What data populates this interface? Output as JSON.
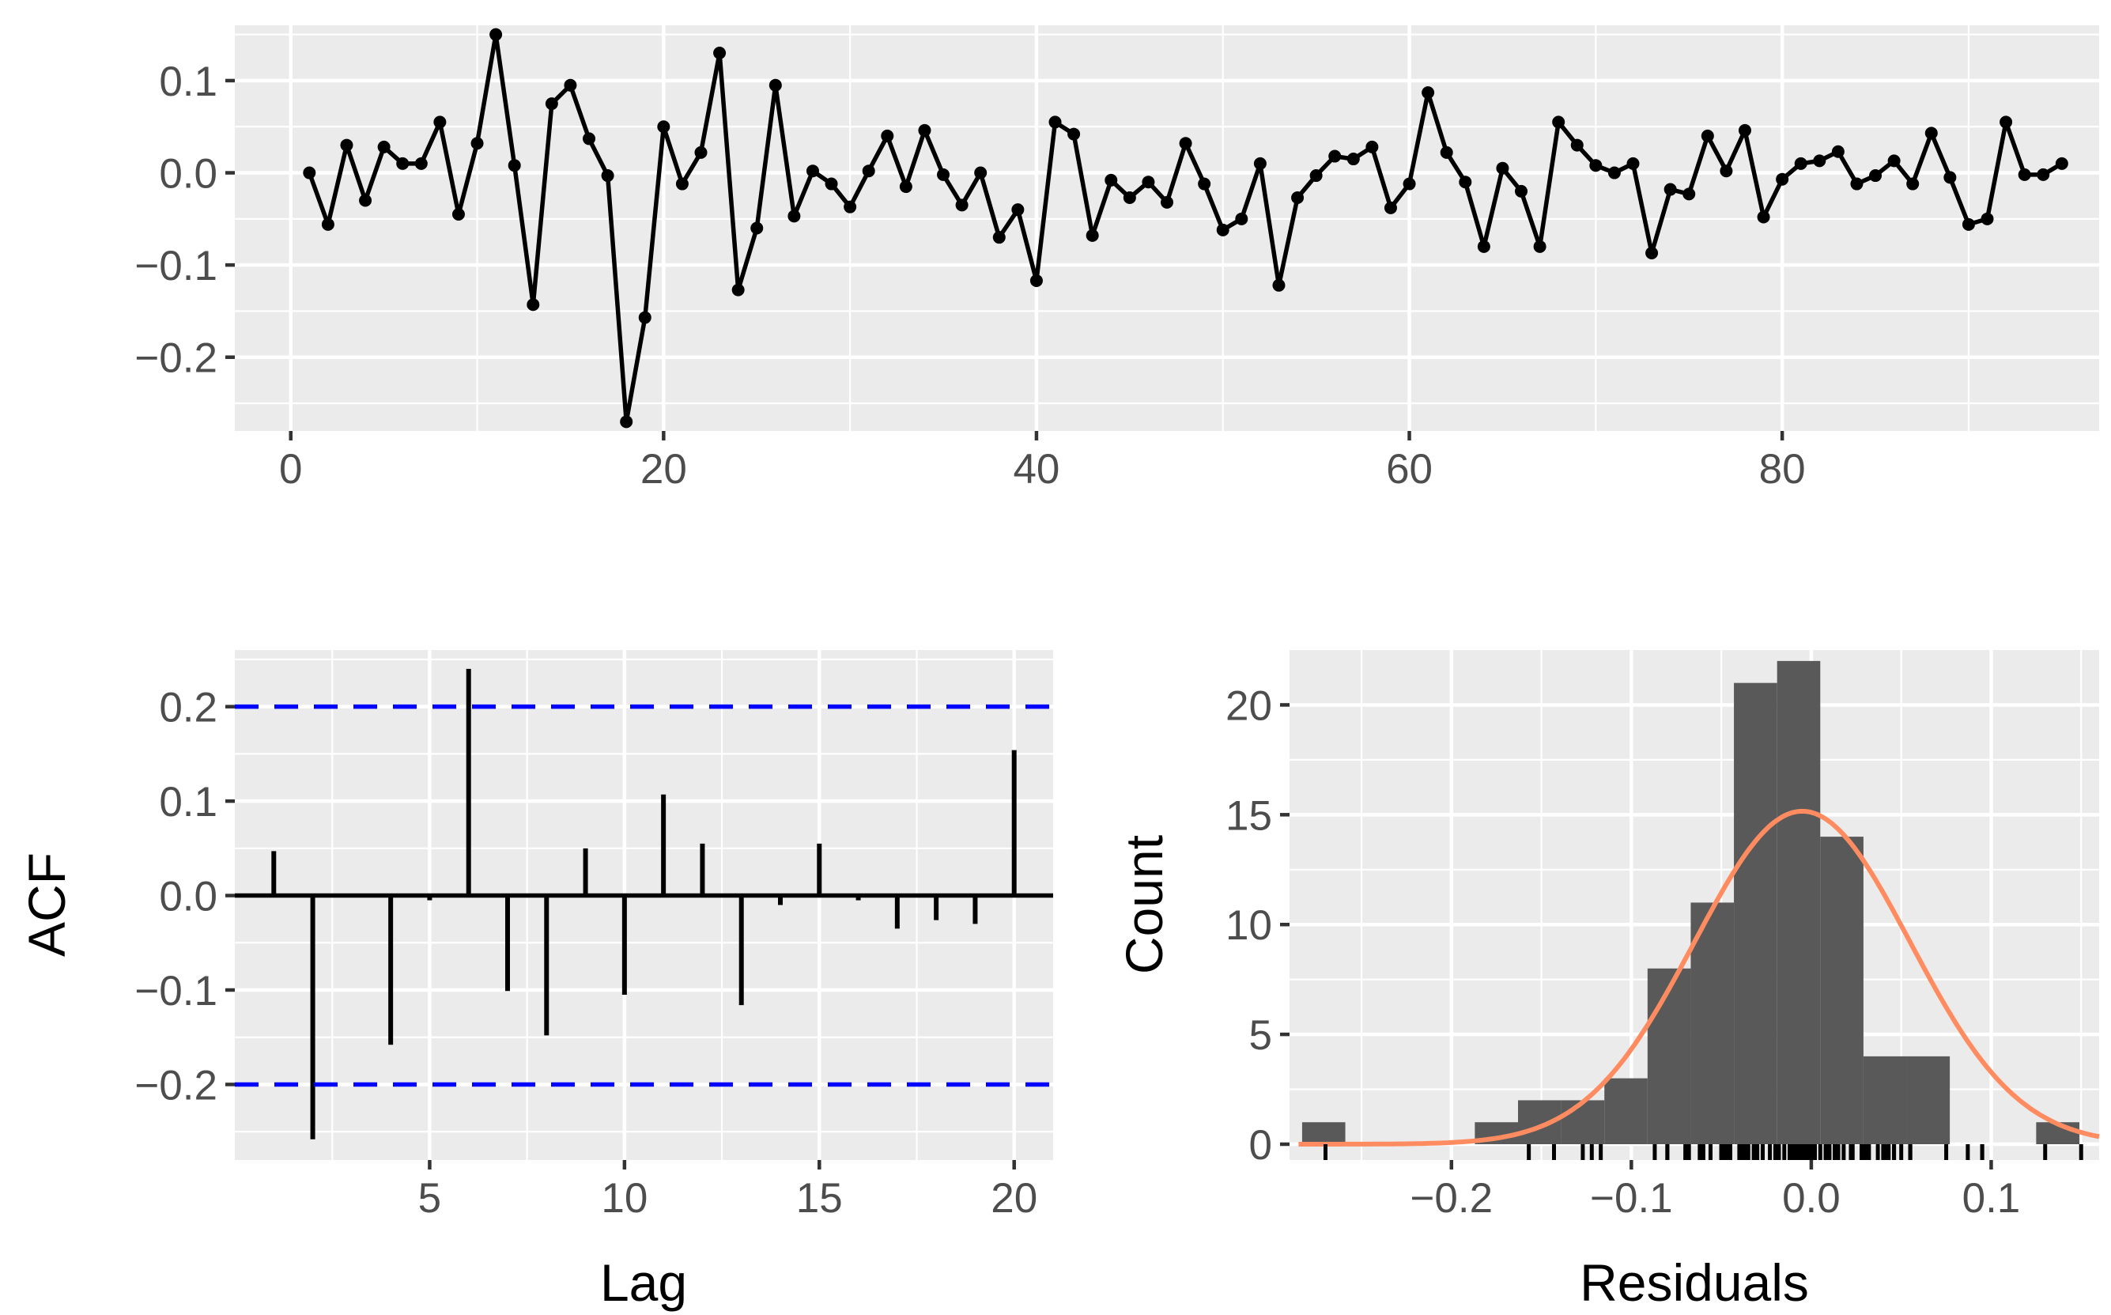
{
  "chart_data": [
    {
      "type": "line",
      "title": "",
      "xlabel": "",
      "ylabel": "",
      "xlim": [
        -3,
        97
      ],
      "ylim": [
        -0.28,
        0.16
      ],
      "x_ticks": [
        0,
        20,
        40,
        60,
        80
      ],
      "x_tick_labels": [
        "0",
        "20",
        "40",
        "60",
        "80"
      ],
      "y_ticks": [
        0.1,
        0.0,
        -0.1,
        -0.2
      ],
      "y_tick_labels": [
        "0.1",
        "0.0",
        "−0.1",
        "−0.2"
      ],
      "grid": true,
      "series": [
        {
          "color": "#000000",
          "values": [
            0.0,
            -0.056,
            0.03,
            -0.03,
            0.028,
            0.01,
            0.01,
            0.055,
            -0.045,
            0.032,
            0.15,
            0.008,
            -0.143,
            0.075,
            0.095,
            0.037,
            -0.003,
            -0.27,
            -0.157,
            0.05,
            -0.012,
            0.022,
            0.13,
            -0.127,
            -0.06,
            0.095,
            -0.047,
            0.002,
            -0.012,
            -0.037,
            0.002,
            0.04,
            -0.015,
            0.046,
            -0.002,
            -0.035,
            0.0,
            -0.07,
            -0.04,
            -0.117,
            0.055,
            0.042,
            -0.068,
            -0.008,
            -0.027,
            -0.01,
            -0.032,
            0.032,
            -0.012,
            -0.062,
            -0.05,
            0.01,
            -0.122,
            -0.027,
            -0.003,
            0.018,
            0.015,
            0.028,
            -0.038,
            -0.012,
            0.087,
            0.022,
            -0.01,
            -0.08,
            0.005,
            -0.02,
            -0.08,
            0.055,
            0.03,
            0.008,
            0.0,
            0.01,
            -0.087,
            -0.018,
            -0.023,
            0.04,
            0.002,
            0.046,
            -0.048,
            -0.007,
            0.01,
            0.013,
            0.023,
            -0.012,
            -0.003,
            0.013,
            -0.012,
            0.043,
            -0.005,
            -0.056,
            -0.05,
            0.055,
            -0.002,
            -0.002,
            0.01
          ]
        }
      ]
    },
    {
      "type": "bar",
      "title": "",
      "xlabel": "Lag",
      "ylabel": "ACF",
      "xlim": [
        0,
        21
      ],
      "ylim": [
        -0.28,
        0.26
      ],
      "x_ticks": [
        5,
        10,
        15,
        20
      ],
      "x_tick_labels": [
        "5",
        "10",
        "15",
        "20"
      ],
      "y_ticks": [
        0.2,
        0.1,
        0.0,
        -0.1,
        -0.2
      ],
      "y_tick_labels": [
        "0.2",
        "0.1",
        "0.0",
        "−0.1",
        "−0.2"
      ],
      "grid": true,
      "categories": [
        1,
        2,
        3,
        4,
        5,
        6,
        7,
        8,
        9,
        10,
        11,
        12,
        13,
        14,
        15,
        16,
        17,
        18,
        19,
        20
      ],
      "values": [
        0.047,
        -0.258,
        -0.002,
        -0.158,
        -0.005,
        0.24,
        -0.101,
        -0.148,
        0.05,
        -0.105,
        0.107,
        0.055,
        -0.116,
        -0.01,
        0.055,
        -0.005,
        -0.035,
        -0.026,
        -0.03,
        0.154
      ],
      "bar_color": "#000000",
      "confidence_bounds": [
        0.2,
        -0.2
      ],
      "confidence_color": "#0000ff"
    },
    {
      "type": "bar",
      "title": "",
      "xlabel": "Residuals",
      "ylabel": "Count",
      "xlim": [
        -0.29,
        0.16
      ],
      "ylim": [
        0,
        22.5
      ],
      "x_ticks": [
        -0.2,
        -0.1,
        0.0,
        0.1
      ],
      "x_tick_labels": [
        "−0.2",
        "−0.1",
        "0.0",
        "0.1"
      ],
      "y_ticks": [
        0,
        5,
        10,
        15,
        20
      ],
      "y_tick_labels": [
        "0",
        "5",
        "10",
        "15",
        "20"
      ],
      "grid": true,
      "bin_width": 0.024,
      "bins": [
        {
          "x0": -0.283,
          "x1": -0.259,
          "count": 1
        },
        {
          "x0": -0.259,
          "x1": -0.235,
          "count": 0
        },
        {
          "x0": -0.235,
          "x1": -0.211,
          "count": 0
        },
        {
          "x0": -0.211,
          "x1": -0.187,
          "count": 0
        },
        {
          "x0": -0.187,
          "x1": -0.163,
          "count": 1
        },
        {
          "x0": -0.163,
          "x1": -0.139,
          "count": 2
        },
        {
          "x0": -0.139,
          "x1": -0.115,
          "count": 2
        },
        {
          "x0": -0.115,
          "x1": -0.091,
          "count": 3
        },
        {
          "x0": -0.091,
          "x1": -0.067,
          "count": 8
        },
        {
          "x0": -0.067,
          "x1": -0.043,
          "count": 11
        },
        {
          "x0": -0.043,
          "x1": -0.019,
          "count": 21
        },
        {
          "x0": -0.019,
          "x1": 0.005,
          "count": 22
        },
        {
          "x0": 0.005,
          "x1": 0.029,
          "count": 14
        },
        {
          "x0": 0.029,
          "x1": 0.053,
          "count": 4
        },
        {
          "x0": 0.053,
          "x1": 0.077,
          "count": 4
        },
        {
          "x0": 0.077,
          "x1": 0.101,
          "count": 0
        },
        {
          "x0": 0.101,
          "x1": 0.125,
          "count": 0
        },
        {
          "x0": 0.125,
          "x1": 0.149,
          "count": 1
        }
      ],
      "bar_color": "#595959",
      "density_curve": {
        "mean": -0.005,
        "sd": 0.06,
        "n": 95,
        "color": "#ff8c60"
      },
      "rug": [
        -0.27,
        -0.157,
        -0.143,
        -0.127,
        -0.122,
        -0.117,
        -0.087,
        -0.08,
        -0.08,
        -0.07,
        -0.068,
        -0.062,
        -0.06,
        -0.056,
        -0.056,
        -0.05,
        -0.05,
        -0.048,
        -0.047,
        -0.045,
        -0.04,
        -0.038,
        -0.037,
        -0.035,
        -0.032,
        -0.03,
        -0.027,
        -0.027,
        -0.023,
        -0.02,
        -0.018,
        -0.015,
        -0.012,
        -0.012,
        -0.012,
        -0.012,
        -0.01,
        -0.01,
        -0.008,
        -0.007,
        -0.005,
        -0.003,
        -0.003,
        -0.002,
        -0.002,
        -0.002,
        0.0,
        0.0,
        0.0,
        0.002,
        0.002,
        0.002,
        0.005,
        0.008,
        0.008,
        0.01,
        0.01,
        0.01,
        0.01,
        0.01,
        0.01,
        0.013,
        0.013,
        0.015,
        0.018,
        0.022,
        0.022,
        0.023,
        0.028,
        0.028,
        0.03,
        0.03,
        0.032,
        0.032,
        0.037,
        0.04,
        0.04,
        0.042,
        0.043,
        0.046,
        0.046,
        0.05,
        0.055,
        0.055,
        0.055,
        0.055,
        0.075,
        0.087,
        0.095,
        0.095,
        0.13,
        0.15
      ],
      "rug_color": "#000000"
    }
  ]
}
